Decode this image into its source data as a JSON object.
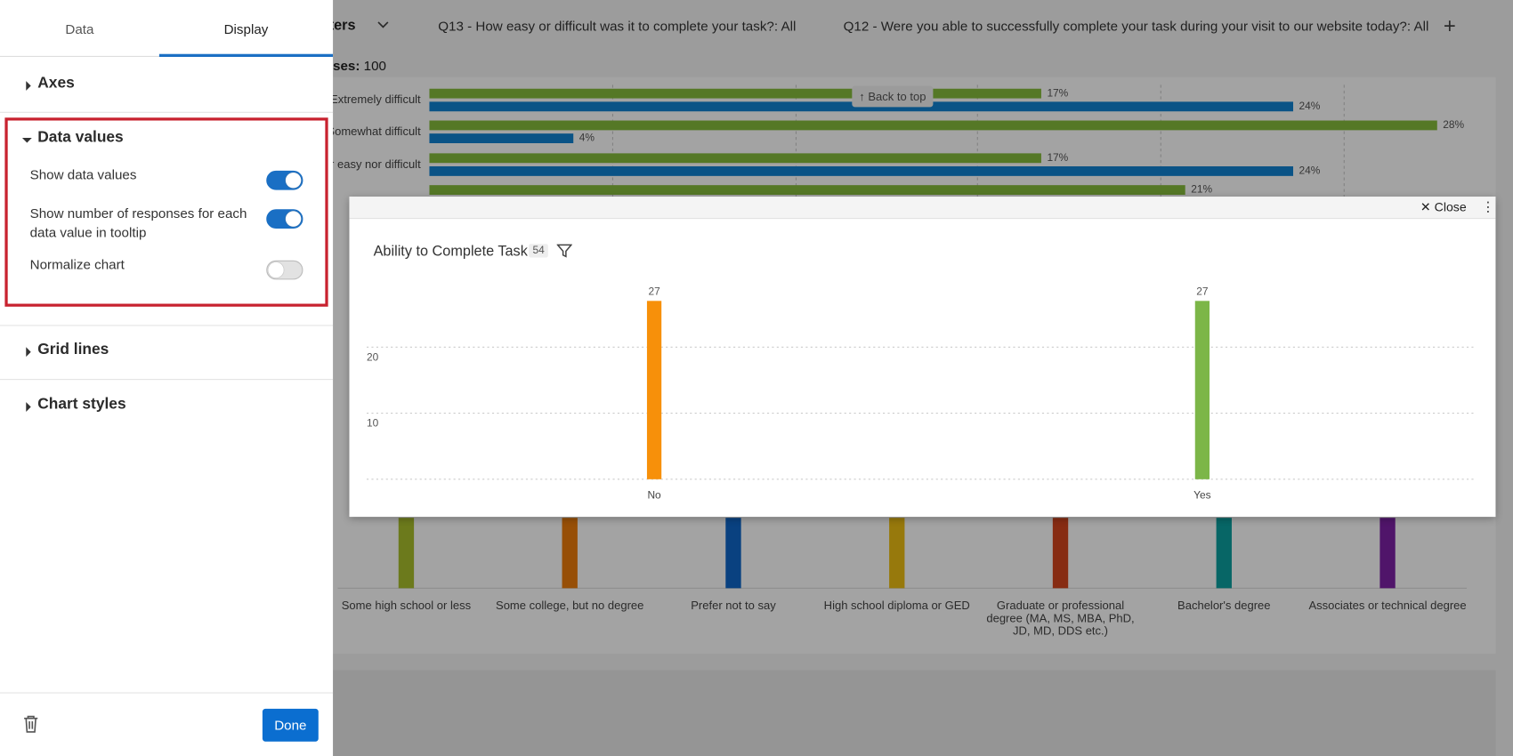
{
  "toolbar": {
    "filters_label": "ters",
    "filters": [
      "Q13 - How easy or difficult was it to complete your task?: All",
      "Q12 - Were you able to successfully complete your task during your visit to our website today?: All"
    ],
    "responses_label": "ses:",
    "responses": "100"
  },
  "background_chart": {
    "back_to_top": "Back to top",
    "categories": [
      "Extremely difficult",
      "Somewhat difficult",
      "r easy nor difficult",
      null
    ],
    "series": [
      {
        "color": "#86bc3c",
        "values": [
          17,
          28,
          17,
          21
        ],
        "value_labels": [
          "17%",
          "28%",
          "17%",
          "21%"
        ]
      },
      {
        "color": "#1182d2",
        "values": [
          24,
          4,
          24,
          null
        ],
        "value_labels": [
          "24%",
          "4%",
          "24%",
          null
        ]
      }
    ],
    "columns": [
      {
        "label": "Some high school or less",
        "color": "#a9bf2c"
      },
      {
        "label": "Some college, but no degree",
        "color": "#ec7c0c"
      },
      {
        "label": "Prefer not to say",
        "color": "#0f67c8"
      },
      {
        "label": "High school diploma or GED",
        "color": "#ecbd14"
      },
      {
        "label": "Graduate or professional degree (MA, MS, MBA, PhD, JD, MD, DDS etc.)",
        "color": "#d4461e"
      },
      {
        "label": "Bachelor's degree",
        "color": "#0ba0a0"
      },
      {
        "label": "Associates or technical degree",
        "color": "#7e22a6"
      }
    ]
  },
  "modal": {
    "close": "Close",
    "chart": {
      "type": "bar",
      "title": "Ability to Complete Task",
      "count": "54",
      "categories": [
        "No",
        "Yes"
      ],
      "values": [
        27,
        27
      ],
      "colors": [
        "#f7900a",
        "#7cb648"
      ],
      "ylim": [
        0,
        30
      ],
      "yticks": [
        10,
        20
      ],
      "grid": true
    }
  },
  "sidebar": {
    "tabs": [
      "Data",
      "Display"
    ],
    "active_tab": 1,
    "sections": [
      {
        "title": "Axes",
        "expanded": false
      },
      {
        "title": "Data values",
        "expanded": true,
        "highlighted": true,
        "options": [
          {
            "label": "Show data values",
            "on": true
          },
          {
            "label": "Show number of responses for each data value in tooltip",
            "on": true
          },
          {
            "label": "Normalize chart",
            "on": false
          }
        ]
      },
      {
        "title": "Grid lines",
        "expanded": false
      },
      {
        "title": "Chart styles",
        "expanded": false
      }
    ],
    "done_button": "Done"
  }
}
